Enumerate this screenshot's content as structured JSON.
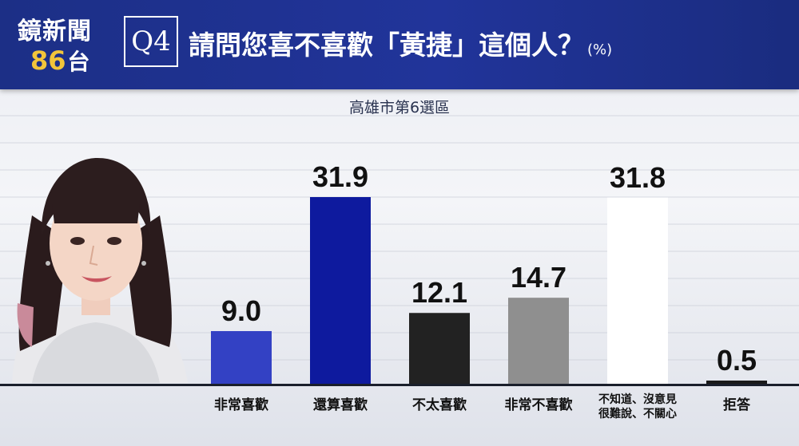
{
  "header": {
    "logo_line1": "鏡新聞",
    "logo_line2_num": "86",
    "logo_line2_char": "台",
    "question_number": "Q4",
    "question_text": "請問您喜不喜歡「黃捷」這個人？",
    "unit": "(%)"
  },
  "subtitle": "高雄市第6選區",
  "colors": {
    "header": "#21349a",
    "logo_accent": "#f3c53a"
  },
  "chart_data": {
    "type": "bar",
    "title": "請問您喜不喜歡「黃捷」這個人？",
    "subtitle": "高雄市第6選區",
    "unit": "%",
    "categories": [
      "非常喜歡",
      "還算喜歡",
      "不太喜歡",
      "非常不喜歡",
      "不知道、沒意見 很難說、不關心",
      "拒答"
    ],
    "category_lines": [
      [
        "非常喜歡"
      ],
      [
        "還算喜歡"
      ],
      [
        "不太喜歡"
      ],
      [
        "非常不喜歡"
      ],
      [
        "不知道、沒意見",
        "很難說、不關心"
      ],
      [
        "拒答"
      ]
    ],
    "values": [
      9.0,
      31.9,
      12.1,
      14.7,
      31.8,
      0.5
    ],
    "value_labels": [
      "9.0",
      "31.9",
      "12.1",
      "14.7",
      "31.8",
      "0.5"
    ],
    "bar_colors": [
      "#3341c4",
      "#0e1a9e",
      "#222222",
      "#8f8f8f",
      "#ffffff",
      "#1a1a1a"
    ],
    "grid": false,
    "legend": "none"
  }
}
